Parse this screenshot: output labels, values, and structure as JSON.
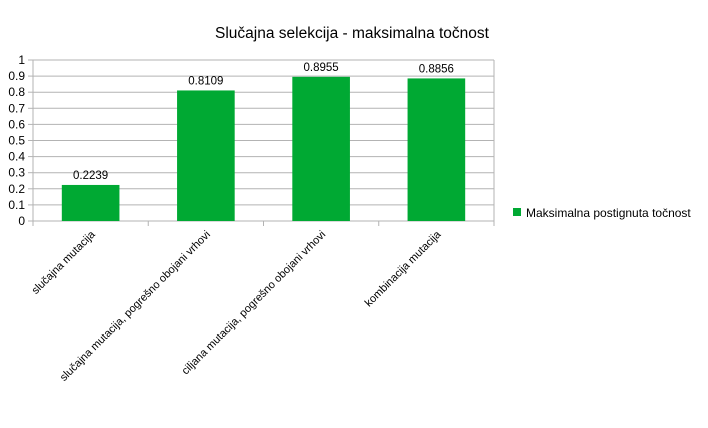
{
  "chart_data": {
    "type": "bar",
    "title": "Slučajna selekcija - maksimalna točnost",
    "xlabel": "",
    "ylabel": "",
    "categories": [
      "slučajna mutacija",
      "slučajna mutacija, pogrešno obojani vrhovi",
      "ciljana mutacija, pogrešno obojani vrhovi",
      "kombinacija mutacija"
    ],
    "series": [
      {
        "name": "Maksimalna postignuta točnost",
        "values": [
          0.2239,
          0.8109,
          0.8955,
          0.8856
        ],
        "data_labels": [
          "0.2239",
          "0.8109",
          "0.8955",
          "0.8856"
        ],
        "color": "#00a933"
      }
    ],
    "ylim": [
      0,
      1
    ],
    "yticks": [
      "0",
      "0.1",
      "0.2",
      "0.3",
      "0.4",
      "0.5",
      "0.6",
      "0.7",
      "0.8",
      "0.9",
      "1"
    ],
    "grid": true,
    "legend_position": "right"
  }
}
